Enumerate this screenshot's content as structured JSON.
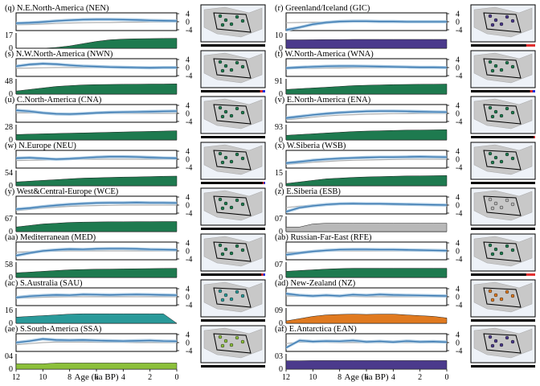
{
  "figure": {
    "xlabel": "Age (ka BP)",
    "x_ticks": [
      12,
      10,
      8,
      6,
      4,
      2,
      0
    ],
    "right_ticks": [
      "4",
      "0",
      "-4"
    ],
    "colors": {
      "anomaly_line": "#3a78b0",
      "anomaly_band": "#9fc3e0",
      "reference": "#b0b0b0",
      "map_land": "#c8c8c8",
      "map_sea": "#eef2f8",
      "map_outline": "#000000"
    }
  },
  "chart_data": [
    {
      "type": "line",
      "id": "nen",
      "title": "(q) N.E.North-America (NEN)",
      "left_ticks": [
        "17",
        "0"
      ],
      "bar_color": "#1e7a4f",
      "bar_fill": [
        0,
        0,
        0,
        0.05,
        0.15,
        0.3,
        0.45,
        0.55,
        0.6,
        0.62,
        0.63,
        0.64,
        0.65
      ],
      "anomaly": [
        -0.6,
        -0.4,
        -0.1,
        0.3,
        0.6,
        0.8,
        0.9,
        0.9,
        0.8,
        0.7,
        0.5,
        0.4,
        0.3
      ],
      "reference": [
        -1.2,
        -1.1,
        -0.9,
        -0.7,
        -0.5,
        -0.4,
        -0.3,
        -0.3,
        -0.2,
        -0.2,
        -0.1,
        -0.1,
        0
      ],
      "strip": []
    },
    {
      "type": "line",
      "id": "gic",
      "title": "(r) Greenland/Iceland (GIC)",
      "left_ticks": [
        "10",
        "0"
      ],
      "bar_color": "#4b3a8c",
      "bar_fill": [
        0.55,
        0.55,
        0.56,
        0.57,
        0.57,
        0.58,
        0.58,
        0.58,
        0.58,
        0.58,
        0.58,
        0.58,
        0.58
      ],
      "anomaly": [
        -3.2,
        -2.2,
        -1.0,
        -0.3,
        0.1,
        0.2,
        0.2,
        0.1,
        0.1,
        0.0,
        0.0,
        0.0,
        0.0
      ],
      "reference": [
        -0.4,
        -0.3,
        -0.2,
        -0.1,
        0,
        0,
        0,
        0,
        0,
        0,
        0,
        0,
        0
      ],
      "strip": [
        {
          "color": "#e03030",
          "frac": 0.14
        }
      ]
    },
    {
      "type": "line",
      "id": "nwn",
      "title": "(s) N.W.North-America (NWN)",
      "left_ticks": [
        "48",
        "0"
      ],
      "bar_color": "#1e7a4f",
      "bar_fill": [
        0.2,
        0.3,
        0.4,
        0.5,
        0.55,
        0.6,
        0.62,
        0.63,
        0.64,
        0.65,
        0.66,
        0.66,
        0.67
      ],
      "anomaly": [
        0.5,
        1.2,
        1.5,
        1.3,
        0.9,
        0.6,
        0.4,
        0.2,
        0.1,
        0.0,
        -0.1,
        0.0,
        0.0
      ],
      "reference": [
        -0.3,
        -0.2,
        -0.1,
        0,
        0,
        0,
        0,
        0,
        0,
        0,
        0,
        0,
        0
      ],
      "strip": [
        {
          "color": "#e03030",
          "frac": 0.04
        },
        {
          "color": "#2030e0",
          "frac": 0.04
        }
      ]
    },
    {
      "type": "line",
      "id": "wna",
      "title": "(t) W.North-America (WNA)",
      "left_ticks": [
        "91",
        "0"
      ],
      "bar_color": "#1e7a4f",
      "bar_fill": [
        0.3,
        0.35,
        0.4,
        0.45,
        0.5,
        0.55,
        0.58,
        0.6,
        0.62,
        0.63,
        0.64,
        0.65,
        0.66
      ],
      "anomaly": [
        -0.2,
        0.1,
        0.3,
        0.5,
        0.6,
        0.6,
        0.5,
        0.4,
        0.3,
        0.2,
        0.1,
        0.1,
        0.0
      ],
      "reference": [
        -0.4,
        -0.3,
        -0.3,
        -0.2,
        -0.2,
        -0.1,
        -0.1,
        -0.1,
        0,
        0,
        0,
        0,
        0
      ],
      "strip": [
        {
          "color": "#e03030",
          "frac": 0.04
        },
        {
          "color": "#2030e0",
          "frac": 0.04
        }
      ]
    },
    {
      "type": "line",
      "id": "cna",
      "title": "(u) C.North-America (CNA)",
      "left_ticks": [
        "28",
        "0"
      ],
      "bar_color": "#1e7a4f",
      "bar_fill": [
        0.35,
        0.38,
        0.4,
        0.42,
        0.44,
        0.46,
        0.48,
        0.5,
        0.52,
        0.54,
        0.56,
        0.58,
        0.6
      ],
      "anomaly": [
        1.2,
        0.8,
        0.2,
        -0.2,
        -0.3,
        -0.1,
        0.2,
        0.4,
        0.5,
        0.6,
        0.7,
        0.8,
        0.9
      ],
      "reference": [
        0.2,
        0.2,
        0.1,
        0.1,
        0,
        0,
        0,
        0,
        0,
        0,
        0,
        0,
        0
      ],
      "strip": []
    },
    {
      "type": "line",
      "id": "ena",
      "title": "(v) E.North-America (ENA)",
      "left_ticks": [
        "93",
        "0"
      ],
      "bar_color": "#1e7a4f",
      "bar_fill": [
        0.3,
        0.35,
        0.4,
        0.45,
        0.5,
        0.55,
        0.58,
        0.6,
        0.62,
        0.64,
        0.65,
        0.66,
        0.67
      ],
      "anomaly": [
        -1.8,
        -1.2,
        -0.6,
        -0.1,
        0.3,
        0.6,
        0.8,
        0.9,
        0.9,
        0.8,
        0.7,
        0.6,
        0.5
      ],
      "reference": [
        -2.5,
        -2.0,
        -1.5,
        -1.0,
        -0.7,
        -0.5,
        -0.3,
        -0.2,
        -0.1,
        -0.1,
        0,
        0,
        0
      ],
      "strip": [
        {
          "color": "#e03030",
          "frac": 0.02
        }
      ]
    },
    {
      "type": "line",
      "id": "neu",
      "title": "(w) N.Europe (NEU)",
      "left_ticks": [
        "54",
        "0"
      ],
      "bar_color": "#1e7a4f",
      "bar_fill": [
        0.25,
        0.3,
        0.35,
        0.4,
        0.45,
        0.5,
        0.52,
        0.55,
        0.57,
        0.58,
        0.6,
        0.62,
        0.63
      ],
      "anomaly": [
        0.4,
        0.6,
        0.3,
        0.0,
        0.2,
        0.5,
        0.8,
        1.0,
        1.0,
        0.9,
        0.7,
        0.5,
        0.4
      ],
      "reference": [
        -0.5,
        -0.4,
        -0.3,
        -0.2,
        -0.1,
        0,
        0,
        0,
        0,
        0,
        0,
        0,
        0
      ],
      "strip": [
        {
          "color": "#e03030",
          "frac": 0.02
        },
        {
          "color": "#2030e0",
          "frac": 0.02
        }
      ]
    },
    {
      "type": "line",
      "id": "wsb",
      "title": "(x) W.Siberia (WSB)",
      "left_ticks": [
        "15",
        "0"
      ],
      "bar_color": "#1e7a4f",
      "bar_fill": [
        0.15,
        0.25,
        0.35,
        0.45,
        0.5,
        0.55,
        0.58,
        0.6,
        0.62,
        0.64,
        0.65,
        0.66,
        0.67
      ],
      "anomaly": [
        -1.5,
        -1.0,
        -0.4,
        0.0,
        0.3,
        0.5,
        0.7,
        0.8,
        0.8,
        0.9,
        1.0,
        0.9,
        0.8
      ],
      "reference": [
        -2.0,
        -1.6,
        -1.2,
        -0.9,
        -0.6,
        -0.4,
        -0.3,
        -0.2,
        -0.1,
        0,
        0,
        0,
        0
      ],
      "strip": []
    },
    {
      "type": "line",
      "id": "wce",
      "title": "(y) West&Central-Europe (WCE)",
      "left_ticks": [
        "67",
        "0"
      ],
      "bar_color": "#1e7a4f",
      "bar_fill": [
        0.3,
        0.4,
        0.5,
        0.55,
        0.6,
        0.62,
        0.63,
        0.64,
        0.64,
        0.65,
        0.65,
        0.66,
        0.66
      ],
      "anomaly": [
        -1.6,
        -1.2,
        -0.6,
        -0.1,
        0.3,
        0.6,
        0.8,
        0.9,
        0.9,
        1.0,
        0.9,
        0.9,
        0.8
      ],
      "reference": [
        -2.2,
        -1.7,
        -1.2,
        -0.8,
        -0.5,
        -0.3,
        -0.2,
        -0.1,
        0,
        0,
        0,
        0,
        0
      ],
      "strip": []
    },
    {
      "type": "line",
      "id": "esb",
      "title": "(z) E.Siberia (ESB)",
      "left_ticks": [
        "07",
        "0"
      ],
      "bar_color": "#b8b8b8",
      "bar_fill": [
        0.3,
        0.3,
        0.5,
        0.55,
        0.55,
        0.55,
        0.55,
        0.55,
        0.55,
        0.55,
        0.55,
        0.55,
        0.55
      ],
      "anomaly": [
        -2.6,
        -1.0,
        -0.3,
        0.2,
        0.5,
        0.6,
        0.5,
        0.5,
        0.4,
        0.3,
        0.2,
        0.1,
        0.0
      ],
      "reference": [
        -1.0,
        -0.4,
        0,
        0.2,
        0.3,
        0.3,
        0.2,
        0.2,
        0.1,
        0.1,
        0,
        0,
        0
      ],
      "strip": []
    },
    {
      "type": "line",
      "id": "med",
      "title": "(aa) Mediterranean (MED)",
      "left_ticks": [
        "58",
        "0"
      ],
      "bar_color": "#1e7a4f",
      "bar_fill": [
        0.3,
        0.35,
        0.4,
        0.45,
        0.5,
        0.52,
        0.54,
        0.55,
        0.56,
        0.57,
        0.58,
        0.59,
        0.6
      ],
      "anomaly": [
        -1.8,
        -0.8,
        0.0,
        0.4,
        0.7,
        0.6,
        0.8,
        0.9,
        0.9,
        0.8,
        0.6,
        0.5,
        0.4
      ],
      "reference": [
        -0.5,
        -0.3,
        -0.2,
        -0.1,
        0,
        0,
        0,
        0,
        0,
        0,
        0,
        0,
        0
      ],
      "strip": [
        {
          "color": "#e03030",
          "frac": 0.03
        },
        {
          "color": "#2030e0",
          "frac": 0.03
        }
      ]
    },
    {
      "type": "line",
      "id": "rfe",
      "title": "(ab) Russian-Far-East (RFE)",
      "left_ticks": [
        "07",
        "0"
      ],
      "bar_color": "#1e7a4f",
      "bar_fill": [
        0.4,
        0.45,
        0.5,
        0.55,
        0.58,
        0.6,
        0.6,
        0.6,
        0.6,
        0.6,
        0.6,
        0.6,
        0.6
      ],
      "anomaly": [
        -1.5,
        -0.8,
        -0.2,
        0.2,
        0.5,
        0.6,
        0.6,
        0.5,
        0.5,
        0.4,
        0.3,
        0.2,
        0.1
      ],
      "reference": [
        -0.6,
        -0.4,
        -0.2,
        0,
        0,
        0,
        0,
        0,
        0,
        0,
        0,
        0,
        0
      ],
      "strip": [
        {
          "color": "#e03030",
          "frac": 0.14
        }
      ]
    },
    {
      "type": "line",
      "id": "sau",
      "title": "(ac) S.Australia (SAU)",
      "left_ticks": [
        "16",
        "0"
      ],
      "bar_color": "#2a9a9a",
      "bar_fill": [
        0.4,
        0.45,
        0.5,
        0.55,
        0.6,
        0.62,
        0.62,
        0.62,
        0.62,
        0.62,
        0.62,
        0.62,
        0.0
      ],
      "anomaly": [
        -0.3,
        0.2,
        0.5,
        0.7,
        0.6,
        0.9,
        0.8,
        0.7,
        0.8,
        0.9,
        0.8,
        0.7,
        0.6
      ],
      "reference": [
        -0.6,
        -0.4,
        -0.2,
        -0.1,
        0,
        0,
        0,
        0,
        0,
        0,
        0,
        0,
        0
      ],
      "strip": []
    },
    {
      "type": "line",
      "id": "nz",
      "title": "(ad) New-Zealand (NZ)",
      "left_ticks": [
        "09",
        "0"
      ],
      "bar_color": "#e07a20",
      "bar_fill": [
        0.15,
        0.3,
        0.45,
        0.55,
        0.58,
        0.6,
        0.58,
        0.6,
        0.6,
        0.55,
        0.5,
        0.45,
        0.35
      ],
      "anomaly": [
        1.2,
        0.6,
        0.3,
        0.6,
        0.3,
        0.8,
        0.6,
        0.9,
        0.7,
        0.6,
        0.5,
        0.4,
        0.3
      ],
      "reference": [
        0.3,
        0.2,
        0.2,
        0.1,
        0.1,
        0.1,
        0,
        0,
        0,
        0,
        0,
        0,
        0
      ],
      "strip": []
    },
    {
      "type": "line",
      "id": "ssa",
      "title": "(ae) S.South-America (SSA)",
      "left_ticks": [
        "04",
        "0"
      ],
      "bar_color": "#8cc03a",
      "bar_fill": [
        0.35,
        0.35,
        0.35,
        0.4,
        0.4,
        0.4,
        0.4,
        0.4,
        0.4,
        0.4,
        0.4,
        0.4,
        0.4
      ],
      "anomaly": [
        0.0,
        0.6,
        1.4,
        1.0,
        0.9,
        1.0,
        0.8,
        0.7,
        0.6,
        0.7,
        0.8,
        0.6,
        0.5
      ],
      "reference": [
        -0.8,
        -0.4,
        0,
        0.2,
        0.2,
        0.2,
        0.1,
        0.1,
        0.1,
        0,
        0,
        0,
        0
      ],
      "strip": []
    },
    {
      "type": "line",
      "id": "ean",
      "title": "(af) E.Antarctica (EAN)",
      "left_ticks": [
        "03",
        "0"
      ],
      "bar_color": "#4b3a8c",
      "bar_fill": [
        0.55,
        0.55,
        0.56,
        0.56,
        0.56,
        0.56,
        0.56,
        0.56,
        0.56,
        0.56,
        0.56,
        0.56,
        0.56
      ],
      "anomaly": [
        -2.0,
        0.8,
        0.4,
        0.6,
        0.5,
        0.8,
        0.3,
        0.5,
        0.2,
        0.6,
        0.3,
        0.4,
        0.2
      ],
      "reference": [
        -0.4,
        0.2,
        0.1,
        0.1,
        0,
        0,
        0,
        0,
        0,
        0,
        0,
        0,
        0
      ],
      "strip": []
    }
  ]
}
